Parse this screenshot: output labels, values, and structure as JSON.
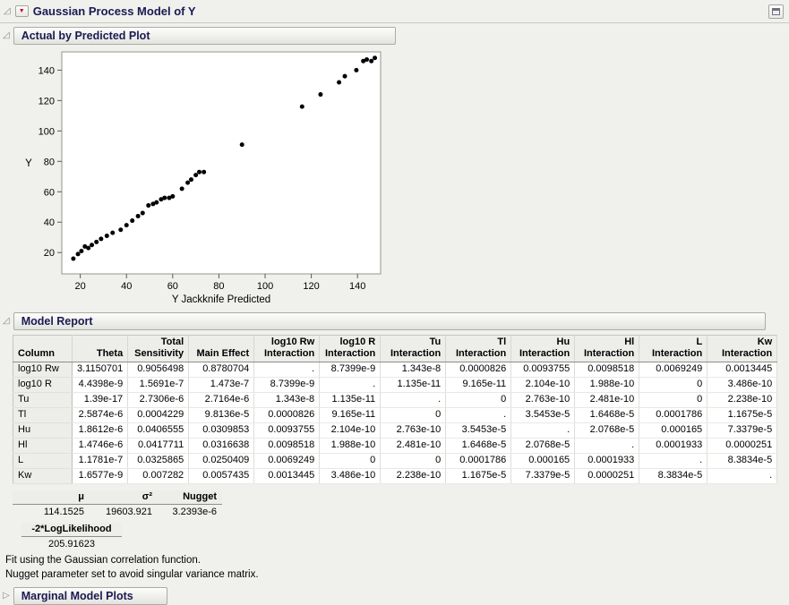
{
  "window": {
    "title": "Gaussian Process Model of Y"
  },
  "icons": {
    "disclosure_open": "◿",
    "disclosure_closed": "▷",
    "red_triangle": "▼"
  },
  "sections": {
    "actual_by_predicted": {
      "title": "Actual by Predicted Plot"
    },
    "model_report": {
      "title": "Model Report"
    },
    "marginal_model_plots": {
      "title": "Marginal Model Plots"
    }
  },
  "chart_data": {
    "type": "scatter",
    "title": "Actual by Predicted Plot",
    "xlabel": "Y Jackknife Predicted",
    "ylabel": "Y",
    "xlim": [
      12,
      150
    ],
    "ylim": [
      6,
      152
    ],
    "xticks": [
      20,
      40,
      60,
      80,
      100,
      120,
      140
    ],
    "yticks": [
      20,
      40,
      60,
      80,
      100,
      120,
      140
    ],
    "grid": false,
    "marker_color": "#000000",
    "points": [
      [
        17,
        16
      ],
      [
        19,
        19
      ],
      [
        20.5,
        21
      ],
      [
        22,
        24
      ],
      [
        23.5,
        23
      ],
      [
        25,
        25
      ],
      [
        27,
        27
      ],
      [
        29,
        29
      ],
      [
        31.5,
        31
      ],
      [
        34,
        33
      ],
      [
        37.5,
        35
      ],
      [
        40,
        38
      ],
      [
        42.5,
        41
      ],
      [
        45,
        44
      ],
      [
        47,
        46
      ],
      [
        49.5,
        51
      ],
      [
        51.5,
        52
      ],
      [
        53,
        53
      ],
      [
        55,
        55
      ],
      [
        56.5,
        56
      ],
      [
        58.5,
        56
      ],
      [
        60,
        57
      ],
      [
        64,
        62
      ],
      [
        66.5,
        66
      ],
      [
        68,
        68
      ],
      [
        70,
        71
      ],
      [
        71.5,
        73
      ],
      [
        73.5,
        73
      ],
      [
        90,
        91
      ],
      [
        116,
        116
      ],
      [
        124,
        124
      ],
      [
        132,
        132
      ],
      [
        134.5,
        136
      ],
      [
        139.5,
        140
      ],
      [
        142.5,
        146
      ],
      [
        144,
        147
      ],
      [
        146,
        146
      ],
      [
        147.5,
        148
      ]
    ]
  },
  "model_report": {
    "headers": [
      [
        "Column"
      ],
      [
        "Theta"
      ],
      [
        "Total",
        "Sensitivity"
      ],
      [
        "Main Effect"
      ],
      [
        "log10 Rw",
        "Interaction"
      ],
      [
        "log10 R",
        "Interaction"
      ],
      [
        "Tu",
        "Interaction"
      ],
      [
        "Tl",
        "Interaction"
      ],
      [
        "Hu",
        "Interaction"
      ],
      [
        "Hl",
        "Interaction"
      ],
      [
        "L Interaction"
      ],
      [
        "Kw",
        "Interaction"
      ]
    ],
    "rows": [
      {
        "name": "log10 Rw",
        "values": [
          "3.1150701",
          "0.9056498",
          "0.8780704",
          ".",
          "8.7399e-9",
          "1.343e-8",
          "0.0000826",
          "0.0093755",
          "0.0098518",
          "0.0069249",
          "0.0013445"
        ]
      },
      {
        "name": "log10 R",
        "values": [
          "4.4398e-9",
          "1.5691e-7",
          "1.473e-7",
          "8.7399e-9",
          ".",
          "1.135e-11",
          "9.165e-11",
          "2.104e-10",
          "1.988e-10",
          "0",
          "3.486e-10"
        ]
      },
      {
        "name": "Tu",
        "values": [
          "1.39e-17",
          "2.7306e-6",
          "2.7164e-6",
          "1.343e-8",
          "1.135e-11",
          ".",
          "0",
          "2.763e-10",
          "2.481e-10",
          "0",
          "2.238e-10"
        ]
      },
      {
        "name": "Tl",
        "values": [
          "2.5874e-6",
          "0.0004229",
          "9.8136e-5",
          "0.0000826",
          "9.165e-11",
          "0",
          ".",
          "3.5453e-5",
          "1.6468e-5",
          "0.0001786",
          "1.1675e-5"
        ]
      },
      {
        "name": "Hu",
        "values": [
          "1.8612e-6",
          "0.0406555",
          "0.0309853",
          "0.0093755",
          "2.104e-10",
          "2.763e-10",
          "3.5453e-5",
          ".",
          "2.0768e-5",
          "0.000165",
          "7.3379e-5"
        ]
      },
      {
        "name": "Hl",
        "values": [
          "1.4746e-6",
          "0.0417711",
          "0.0316638",
          "0.0098518",
          "1.988e-10",
          "2.481e-10",
          "1.6468e-5",
          "2.0768e-5",
          ".",
          "0.0001933",
          "0.0000251"
        ]
      },
      {
        "name": "L",
        "values": [
          "1.1781e-7",
          "0.0325865",
          "0.0250409",
          "0.0069249",
          "0",
          "0",
          "0.0001786",
          "0.000165",
          "0.0001933",
          ".",
          "8.3834e-5"
        ]
      },
      {
        "name": "Kw",
        "values": [
          "1.6577e-9",
          "0.007282",
          "0.0057435",
          "0.0013445",
          "3.486e-10",
          "2.238e-10",
          "1.1675e-5",
          "7.3379e-5",
          "0.0000251",
          "8.3834e-5",
          "."
        ]
      }
    ],
    "stats": {
      "headers": [
        "μ",
        "σ²",
        "Nugget"
      ],
      "values": [
        "114.1525",
        "19603.921",
        "3.2393e-6"
      ]
    },
    "loglikelihood": {
      "label": "-2*LogLikelihood",
      "value": "205.91623"
    },
    "footnotes": [
      "Fit using the Gaussian correlation function.",
      "Nugget parameter set to avoid singular variance matrix."
    ]
  }
}
